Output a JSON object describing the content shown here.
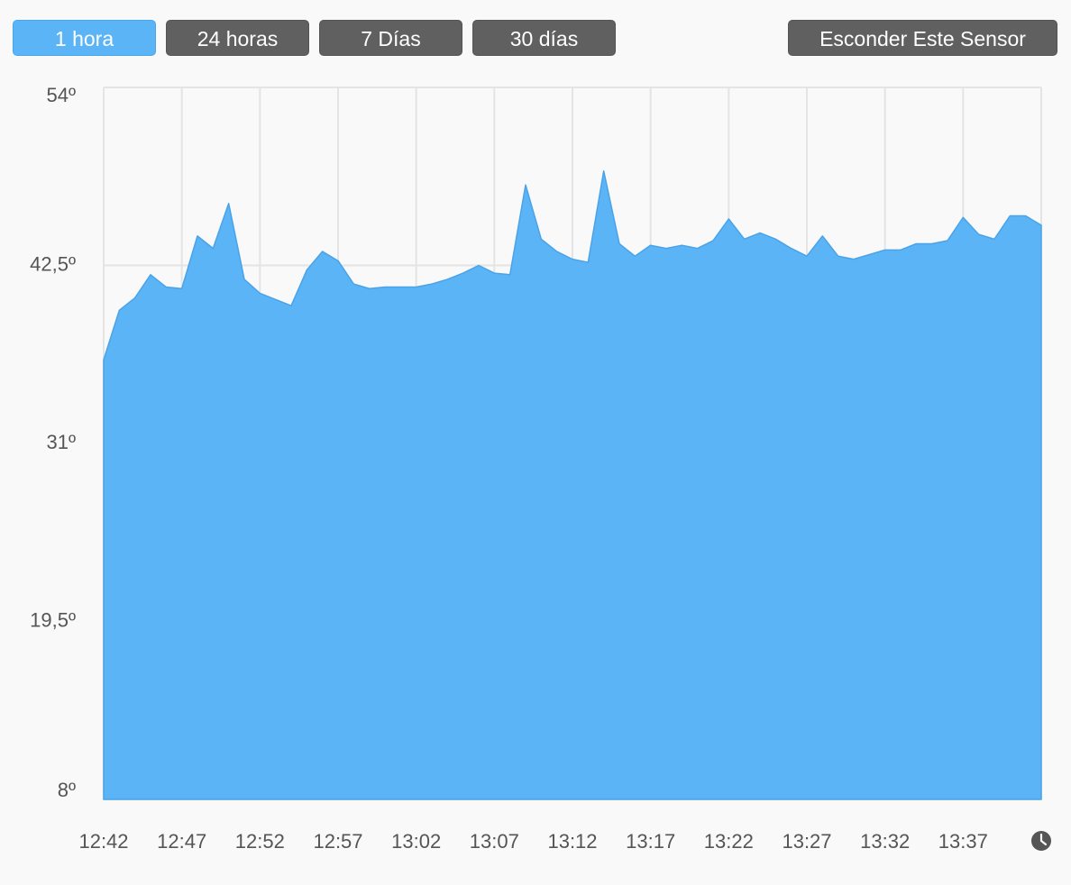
{
  "buttons": [
    "1 hora",
    "24 horas",
    "7 Días",
    "30 días",
    "Esconder Este Sensor"
  ],
  "chart_data": {
    "type": "area",
    "color": "#5ab4f5",
    "grid": true,
    "x": [
      "12:42",
      "12:43",
      "12:44",
      "12:45",
      "12:46",
      "12:47",
      "12:48",
      "12:49",
      "12:50",
      "12:51",
      "12:52",
      "12:53",
      "12:54",
      "12:55",
      "12:56",
      "12:57",
      "12:58",
      "12:59",
      "13:00",
      "13:01",
      "13:02",
      "13:03",
      "13:04",
      "13:05",
      "13:06",
      "13:07",
      "13:08",
      "13:09",
      "13:10",
      "13:11",
      "13:12",
      "13:13",
      "13:14",
      "13:15",
      "13:16",
      "13:17",
      "13:18",
      "13:19",
      "13:20",
      "13:21",
      "13:22",
      "13:23",
      "13:24",
      "13:25",
      "13:26",
      "13:27",
      "13:28",
      "13:29",
      "13:30",
      "13:31",
      "13:32",
      "13:33",
      "13:34",
      "13:35",
      "13:36",
      "13:37",
      "13:38",
      "13:39",
      "13:40",
      "13:41",
      "13:42"
    ],
    "values": [
      36.4,
      39.6,
      40.4,
      41.9,
      41.1,
      41.0,
      44.4,
      43.6,
      46.5,
      41.6,
      40.7,
      40.3,
      39.9,
      42.2,
      43.4,
      42.8,
      41.3,
      41.0,
      41.1,
      41.1,
      41.1,
      41.3,
      41.6,
      42.0,
      42.5,
      42.0,
      41.9,
      47.7,
      44.2,
      43.4,
      42.9,
      42.7,
      48.6,
      43.9,
      43.1,
      43.8,
      43.6,
      43.8,
      43.6,
      44.1,
      45.5,
      44.2,
      44.6,
      44.2,
      43.6,
      43.1,
      44.4,
      43.1,
      42.9,
      43.2,
      43.5,
      43.5,
      43.9,
      43.9,
      44.1,
      45.6,
      44.5,
      44.2,
      45.7,
      45.7,
      45.1
    ],
    "xlim": [
      "12:42",
      "13:42"
    ],
    "xticks": [
      "12:42",
      "12:47",
      "12:52",
      "12:57",
      "13:02",
      "13:07",
      "13:12",
      "13:17",
      "13:22",
      "13:27",
      "13:32",
      "13:37"
    ],
    "ylim": [
      8,
      54
    ],
    "yticks": [
      {
        "value": 8,
        "label": "8º"
      },
      {
        "value": 19.5,
        "label": "19,5º"
      },
      {
        "value": 31,
        "label": "31º"
      },
      {
        "value": 42.5,
        "label": "42,5º"
      },
      {
        "value": 54,
        "label": "54º"
      }
    ]
  }
}
